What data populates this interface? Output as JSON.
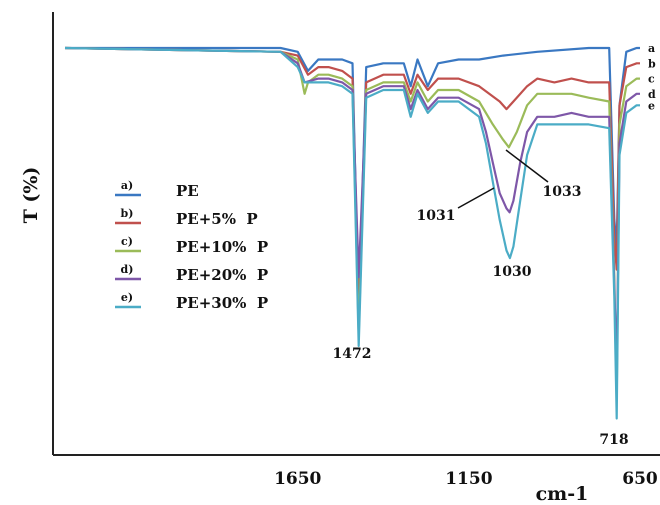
{
  "chart_data": {
    "type": "line",
    "title": "",
    "xlabel": "cm-1",
    "ylabel": "T (%)",
    "xlim": [
      2330,
      650
    ],
    "x_reversed": true,
    "x_ticks": [
      "1650",
      "1150",
      "650"
    ],
    "x_tick_values": [
      1650,
      1150,
      650
    ],
    "grid": false,
    "legend_position": "left",
    "series": [
      {
        "name": "PE",
        "letter": "a)",
        "end_label": "a",
        "color": "#3a78c2",
        "points": [
          [
            2330,
            100
          ],
          [
            1700,
            100
          ],
          [
            1650,
            99
          ],
          [
            1620,
            94
          ],
          [
            1590,
            97
          ],
          [
            1560,
            97
          ],
          [
            1520,
            97
          ],
          [
            1490,
            96
          ],
          [
            1472,
            30
          ],
          [
            1450,
            95
          ],
          [
            1400,
            96
          ],
          [
            1340,
            96
          ],
          [
            1320,
            90
          ],
          [
            1300,
            97
          ],
          [
            1270,
            90
          ],
          [
            1240,
            96
          ],
          [
            1180,
            97
          ],
          [
            1120,
            97
          ],
          [
            1050,
            98
          ],
          [
            950,
            99
          ],
          [
            800,
            100
          ],
          [
            740,
            100
          ],
          [
            725,
            55
          ],
          [
            718,
            48
          ],
          [
            710,
            85
          ],
          [
            690,
            99
          ],
          [
            660,
            100
          ],
          [
            650,
            100
          ]
        ]
      },
      {
        "name": "PE+5%  P",
        "letter": "b)",
        "end_label": "b",
        "color": "#c0504d",
        "points": [
          [
            2330,
            100
          ],
          [
            1700,
            99
          ],
          [
            1650,
            98
          ],
          [
            1620,
            93
          ],
          [
            1590,
            95
          ],
          [
            1560,
            95
          ],
          [
            1520,
            94
          ],
          [
            1490,
            92
          ],
          [
            1472,
            30
          ],
          [
            1450,
            91
          ],
          [
            1400,
            93
          ],
          [
            1340,
            93
          ],
          [
            1320,
            88
          ],
          [
            1300,
            93
          ],
          [
            1270,
            89
          ],
          [
            1240,
            92
          ],
          [
            1180,
            92
          ],
          [
            1120,
            90
          ],
          [
            1060,
            86
          ],
          [
            1040,
            84
          ],
          [
            1020,
            86
          ],
          [
            980,
            90
          ],
          [
            950,
            92
          ],
          [
            900,
            91
          ],
          [
            850,
            92
          ],
          [
            800,
            91
          ],
          [
            740,
            91
          ],
          [
            725,
            50
          ],
          [
            718,
            42
          ],
          [
            710,
            85
          ],
          [
            690,
            95
          ],
          [
            660,
            96
          ],
          [
            650,
            96
          ]
        ]
      },
      {
        "name": "PE+10%  P",
        "letter": "c)",
        "end_label": "c",
        "color": "#9bbb59",
        "points": [
          [
            2330,
            100
          ],
          [
            1700,
            99
          ],
          [
            1650,
            97
          ],
          [
            1630,
            88
          ],
          [
            1620,
            91
          ],
          [
            1590,
            93
          ],
          [
            1560,
            93
          ],
          [
            1520,
            92
          ],
          [
            1490,
            90
          ],
          [
            1472,
            25
          ],
          [
            1450,
            89
          ],
          [
            1400,
            91
          ],
          [
            1340,
            91
          ],
          [
            1320,
            86
          ],
          [
            1300,
            91
          ],
          [
            1270,
            86
          ],
          [
            1240,
            89
          ],
          [
            1180,
            89
          ],
          [
            1120,
            86
          ],
          [
            1080,
            80
          ],
          [
            1050,
            76
          ],
          [
            1033,
            74
          ],
          [
            1010,
            78
          ],
          [
            980,
            85
          ],
          [
            950,
            88
          ],
          [
            900,
            88
          ],
          [
            850,
            88
          ],
          [
            800,
            87
          ],
          [
            740,
            86
          ],
          [
            725,
            40
          ],
          [
            718,
            8
          ],
          [
            710,
            80
          ],
          [
            690,
            90
          ],
          [
            660,
            92
          ],
          [
            650,
            92
          ]
        ]
      },
      {
        "name": "PE+20%  P",
        "letter": "d)",
        "end_label": "d",
        "color": "#7e57a8",
        "points": [
          [
            2330,
            100
          ],
          [
            1700,
            99
          ],
          [
            1650,
            96
          ],
          [
            1630,
            91
          ],
          [
            1590,
            92
          ],
          [
            1560,
            92
          ],
          [
            1520,
            91
          ],
          [
            1490,
            89
          ],
          [
            1472,
            40
          ],
          [
            1450,
            88
          ],
          [
            1400,
            90
          ],
          [
            1340,
            90
          ],
          [
            1320,
            84
          ],
          [
            1300,
            89
          ],
          [
            1270,
            84
          ],
          [
            1240,
            87
          ],
          [
            1180,
            87
          ],
          [
            1120,
            84
          ],
          [
            1100,
            78
          ],
          [
            1080,
            70
          ],
          [
            1060,
            62
          ],
          [
            1040,
            58
          ],
          [
            1031,
            57
          ],
          [
            1020,
            60
          ],
          [
            1000,
            70
          ],
          [
            980,
            78
          ],
          [
            950,
            82
          ],
          [
            900,
            82
          ],
          [
            850,
            83
          ],
          [
            800,
            82
          ],
          [
            740,
            82
          ],
          [
            725,
            38
          ],
          [
            718,
            14
          ],
          [
            710,
            75
          ],
          [
            690,
            86
          ],
          [
            660,
            88
          ],
          [
            650,
            88
          ]
        ]
      },
      {
        "name": "PE+30%  P",
        "letter": "e)",
        "end_label": "e",
        "color": "#4bacc6",
        "points": [
          [
            2330,
            100
          ],
          [
            1700,
            99
          ],
          [
            1650,
            95
          ],
          [
            1630,
            91
          ],
          [
            1590,
            91
          ],
          [
            1560,
            91
          ],
          [
            1520,
            90
          ],
          [
            1490,
            88
          ],
          [
            1472,
            22
          ],
          [
            1450,
            87
          ],
          [
            1400,
            89
          ],
          [
            1340,
            89
          ],
          [
            1320,
            82
          ],
          [
            1300,
            88
          ],
          [
            1270,
            83
          ],
          [
            1240,
            86
          ],
          [
            1180,
            86
          ],
          [
            1120,
            82
          ],
          [
            1100,
            75
          ],
          [
            1080,
            65
          ],
          [
            1060,
            55
          ],
          [
            1040,
            47
          ],
          [
            1030,
            45
          ],
          [
            1020,
            48
          ],
          [
            1000,
            60
          ],
          [
            980,
            72
          ],
          [
            950,
            80
          ],
          [
            900,
            80
          ],
          [
            850,
            80
          ],
          [
            800,
            80
          ],
          [
            740,
            79
          ],
          [
            725,
            35
          ],
          [
            718,
            3
          ],
          [
            710,
            72
          ],
          [
            690,
            83
          ],
          [
            660,
            85
          ],
          [
            650,
            85
          ]
        ]
      }
    ],
    "annotations": [
      {
        "text": "1472",
        "x": 1472
      },
      {
        "text": "1033",
        "x": 1033
      },
      {
        "text": "1031",
        "x": 1031
      },
      {
        "text": "1030",
        "x": 1030
      },
      {
        "text": "718",
        "x": 718
      }
    ]
  }
}
